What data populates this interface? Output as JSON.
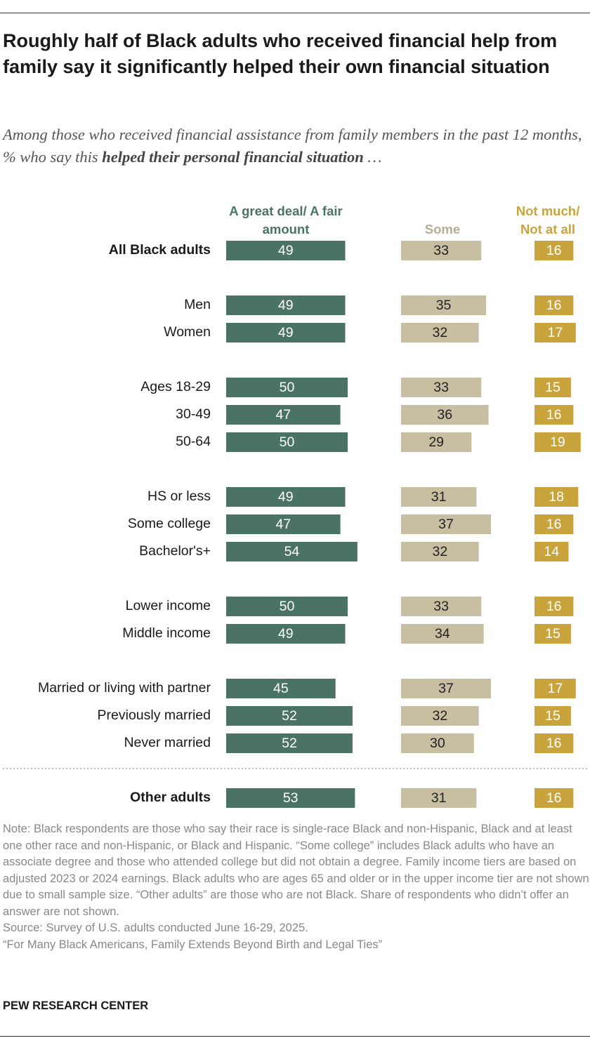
{
  "chart_data": {
    "type": "bar",
    "title": "Roughly half of Black adults who received financial help from family say it significantly helped their own financial situation",
    "subtitle": {
      "before": "Among those who received financial assistance from family members in the past 12 months, % who say this ",
      "emphasis": "helped their personal financial situation",
      "after": " …"
    },
    "categories": [
      "All Black adults",
      "Men",
      "Women",
      "Ages 18-29",
      "30-49",
      "50-64",
      "HS or less",
      "Some college",
      "Bachelor's+",
      "Lower income",
      "Middle income",
      "Married or living with partner",
      "Previously married",
      "Never married",
      "Other adults"
    ],
    "series": [
      {
        "name": "A great deal/ A fair amount",
        "color": "#4a7365",
        "values": [
          49,
          49,
          49,
          50,
          47,
          50,
          49,
          47,
          54,
          50,
          49,
          45,
          52,
          52,
          53
        ]
      },
      {
        "name": "Some",
        "color": "#c8bfa2",
        "values": [
          33,
          35,
          32,
          33,
          36,
          29,
          31,
          37,
          32,
          33,
          34,
          37,
          32,
          30,
          31
        ]
      },
      {
        "name": "Not much/ Not at all",
        "color": "#c9a33b",
        "values": [
          16,
          16,
          17,
          15,
          16,
          19,
          18,
          16,
          14,
          16,
          15,
          17,
          15,
          16,
          16
        ]
      }
    ],
    "note": "Note: Black respondents are those who say their race is single-race Black and non-Hispanic, Black and at least one other race and non-Hispanic, or Black and Hispanic. “Some college” includes Black adults who have an associate degree and those who attended college but did not obtain a degree. Family income tiers are based on adjusted 2023 or 2024 earnings. Black adults who are ages 65 and older or in the upper income tier are not shown due to small sample size. “Other adults” are those who are not Black. Share of respondents who didn’t offer an answer are not shown.",
    "source": "Source: Survey of U.S. adults conducted June 16-29, 2025.",
    "citation": "“For Many Black Americans, Family Extends Beyond Birth and Legal Ties”",
    "credit": "PEW RESEARCH CENTER"
  }
}
